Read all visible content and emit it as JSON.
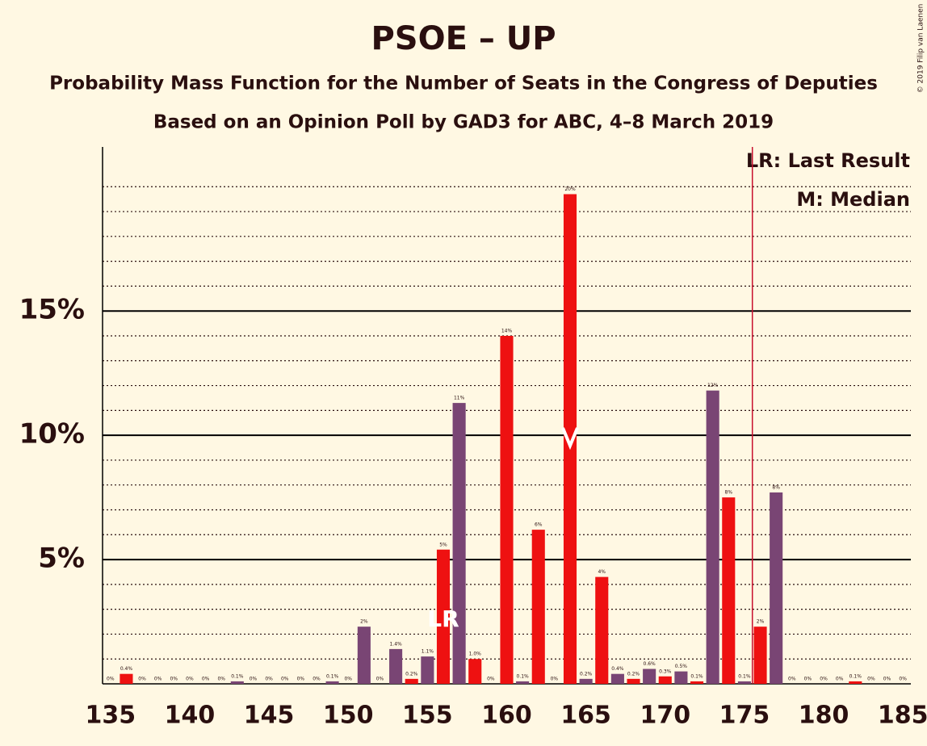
{
  "chart_data": {
    "type": "bar",
    "title": "PSOE – UP",
    "subtitle": "Probability Mass Function for the Number of Seats in the Congress of Deputies",
    "subtitle2": "Based on an Opinion Poll by GAD3 for ABC, 4–8 March 2019",
    "credit": "© 2019 Filip van Laenen",
    "legend": [
      "LR: Last Result",
      "M: Median"
    ],
    "categories": [
      135,
      136,
      137,
      138,
      139,
      140,
      141,
      142,
      143,
      144,
      145,
      146,
      147,
      148,
      149,
      150,
      151,
      152,
      153,
      154,
      155,
      156,
      157,
      158,
      159,
      160,
      161,
      162,
      163,
      164,
      165,
      166,
      167,
      168,
      169,
      170,
      171,
      172,
      173,
      174,
      175,
      176,
      177,
      178,
      179,
      180,
      181,
      182,
      183,
      184,
      185
    ],
    "values": [
      0,
      0.4,
      0,
      0,
      0,
      0,
      0,
      0,
      0.1,
      0,
      0,
      0,
      0,
      0,
      0.1,
      0,
      2.3,
      0,
      1.4,
      0.2,
      1.1,
      5.4,
      11.3,
      1.0,
      0,
      14.0,
      0.1,
      6.2,
      0,
      19.7,
      0.2,
      4.3,
      0.4,
      0.2,
      0.6,
      0.3,
      0.5,
      0.1,
      11.8,
      7.5,
      0.1,
      2.3,
      7.7,
      0,
      0,
      0,
      0,
      0.1,
      0,
      0,
      0
    ],
    "value_labels": [
      "0%",
      "0.4%",
      "0%",
      "0%",
      "0%",
      "0%",
      "0%",
      "0%",
      "0.1%",
      "0%",
      "0%",
      "0%",
      "0%",
      "0%",
      "0.1%",
      "0%",
      "2%",
      "0%",
      "1.4%",
      "0.2%",
      "1.1%",
      "5%",
      "11%",
      "1.0%",
      "0%",
      "14%",
      "0.1%",
      "6%",
      "0%",
      "20%",
      "0.2%",
      "4%",
      "0.4%",
      "0.2%",
      "0.6%",
      "0.3%",
      "0.5%",
      "0.1%",
      "12%",
      "8%",
      "0.1%",
      "2%",
      "8%",
      "0%",
      "0%",
      "0%",
      "0%",
      "0.1%",
      "0%",
      "0%",
      "0%"
    ],
    "colors": [
      "#794574",
      "#ee1111",
      "#794574",
      "#ee1111",
      "#794574",
      "#ee1111",
      "#794574",
      "#ee1111",
      "#794574",
      "#ee1111",
      "#794574",
      "#ee1111",
      "#794574",
      "#ee1111",
      "#794574",
      "#ee1111",
      "#794574",
      "#ee1111",
      "#794574",
      "#ee1111",
      "#794574",
      "#ee1111",
      "#794574",
      "#ee1111",
      "#794574",
      "#ee1111",
      "#794574",
      "#ee1111",
      "#794574",
      "#ee1111",
      "#794574",
      "#ee1111",
      "#794574",
      "#ee1111",
      "#794574",
      "#ee1111",
      "#794574",
      "#ee1111",
      "#794574",
      "#ee1111",
      "#794574",
      "#ee1111",
      "#794574",
      "#ee1111",
      "#794574",
      "#ee1111",
      "#794574",
      "#ee1111",
      "#794574",
      "#ee1111",
      "#794574"
    ],
    "xlim": [
      134.5,
      185.5
    ],
    "xticks": [
      135,
      140,
      145,
      150,
      155,
      160,
      165,
      170,
      175,
      180,
      185
    ],
    "ylim": [
      0,
      21.6
    ],
    "yticks": [
      {
        "value": 5,
        "label": "5%"
      },
      {
        "value": 10,
        "label": "10%"
      },
      {
        "value": 15,
        "label": "15%"
      }
    ],
    "minor_yticks": [
      1,
      2,
      3,
      4,
      6,
      7,
      8,
      9,
      11,
      12,
      13,
      14,
      16,
      17,
      18,
      19,
      20
    ],
    "last_result": 156,
    "last_result_label": "LR",
    "median": 164,
    "vline": 175.5,
    "vline_color": "#c8102e"
  }
}
